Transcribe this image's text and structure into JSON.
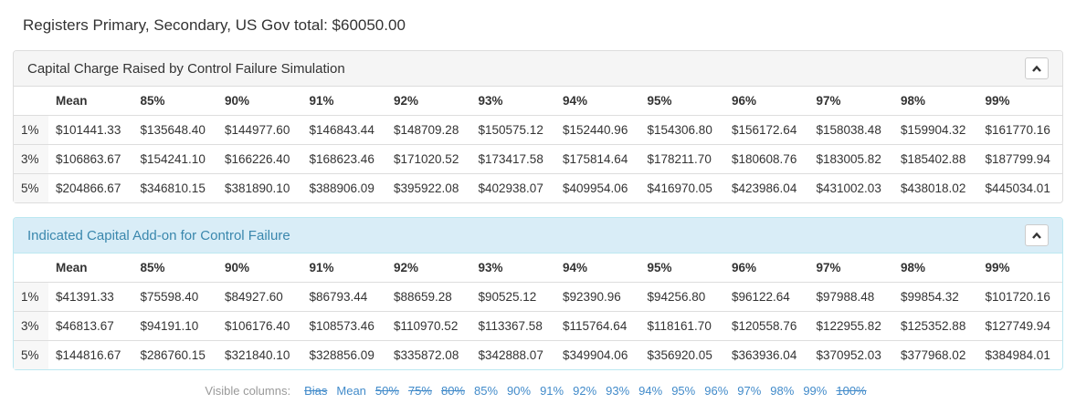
{
  "page": {
    "title": "Registers Primary, Secondary, US Gov total: $60050.00"
  },
  "columns": [
    "Mean",
    "85%",
    "90%",
    "91%",
    "92%",
    "93%",
    "94%",
    "95%",
    "96%",
    "97%",
    "98%",
    "99%"
  ],
  "panels": [
    {
      "title": "Capital Charge Raised by Control Failure Simulation",
      "style": "default",
      "collapse_icon": "chevron-up",
      "rows": [
        {
          "label": "1%",
          "values": [
            "$101441.33",
            "$135648.40",
            "$144977.60",
            "$146843.44",
            "$148709.28",
            "$150575.12",
            "$152440.96",
            "$154306.80",
            "$156172.64",
            "$158038.48",
            "$159904.32",
            "$161770.16"
          ]
        },
        {
          "label": "3%",
          "values": [
            "$106863.67",
            "$154241.10",
            "$166226.40",
            "$168623.46",
            "$171020.52",
            "$173417.58",
            "$175814.64",
            "$178211.70",
            "$180608.76",
            "$183005.82",
            "$185402.88",
            "$187799.94"
          ]
        },
        {
          "label": "5%",
          "values": [
            "$204866.67",
            "$346810.15",
            "$381890.10",
            "$388906.09",
            "$395922.08",
            "$402938.07",
            "$409954.06",
            "$416970.05",
            "$423986.04",
            "$431002.03",
            "$438018.02",
            "$445034.01"
          ]
        }
      ]
    },
    {
      "title": "Indicated Capital Add-on for Control Failure",
      "style": "info",
      "collapse_icon": "chevron-up",
      "rows": [
        {
          "label": "1%",
          "values": [
            "$41391.33",
            "$75598.40",
            "$84927.60",
            "$86793.44",
            "$88659.28",
            "$90525.12",
            "$92390.96",
            "$94256.80",
            "$96122.64",
            "$97988.48",
            "$99854.32",
            "$101720.16"
          ]
        },
        {
          "label": "3%",
          "values": [
            "$46813.67",
            "$94191.10",
            "$106176.40",
            "$108573.46",
            "$110970.52",
            "$113367.58",
            "$115764.64",
            "$118161.70",
            "$120558.76",
            "$122955.82",
            "$125352.88",
            "$127749.94"
          ]
        },
        {
          "label": "5%",
          "values": [
            "$144816.67",
            "$286760.15",
            "$321840.10",
            "$328856.09",
            "$335872.08",
            "$342888.07",
            "$349904.06",
            "$356920.05",
            "$363936.04",
            "$370952.03",
            "$377968.02",
            "$384984.01"
          ]
        }
      ]
    }
  ],
  "footer": {
    "label": "Visible columns:",
    "items": [
      {
        "label": "Bias",
        "struck": true
      },
      {
        "label": "Mean",
        "struck": false
      },
      {
        "label": "50%",
        "struck": true
      },
      {
        "label": "75%",
        "struck": true
      },
      {
        "label": "80%",
        "struck": true
      },
      {
        "label": "85%",
        "struck": false
      },
      {
        "label": "90%",
        "struck": false
      },
      {
        "label": "91%",
        "struck": false
      },
      {
        "label": "92%",
        "struck": false
      },
      {
        "label": "93%",
        "struck": false
      },
      {
        "label": "94%",
        "struck": false
      },
      {
        "label": "95%",
        "struck": false
      },
      {
        "label": "96%",
        "struck": false
      },
      {
        "label": "97%",
        "struck": false
      },
      {
        "label": "98%",
        "struck": false
      },
      {
        "label": "99%",
        "struck": false
      },
      {
        "label": "100%",
        "struck": true
      }
    ]
  },
  "colors": {
    "panel_default_border": "#dddddd",
    "panel_default_heading_bg": "#f5f5f5",
    "panel_default_title_text": "#333333",
    "panel_info_border": "#bce8f1",
    "panel_info_heading_bg": "#d9edf7",
    "panel_info_title_text": "#3a87ad",
    "link_blue": "#428bca",
    "muted_text": "#999999",
    "row_label_bg": "#f7f7f7",
    "table_border": "#dddddd"
  }
}
